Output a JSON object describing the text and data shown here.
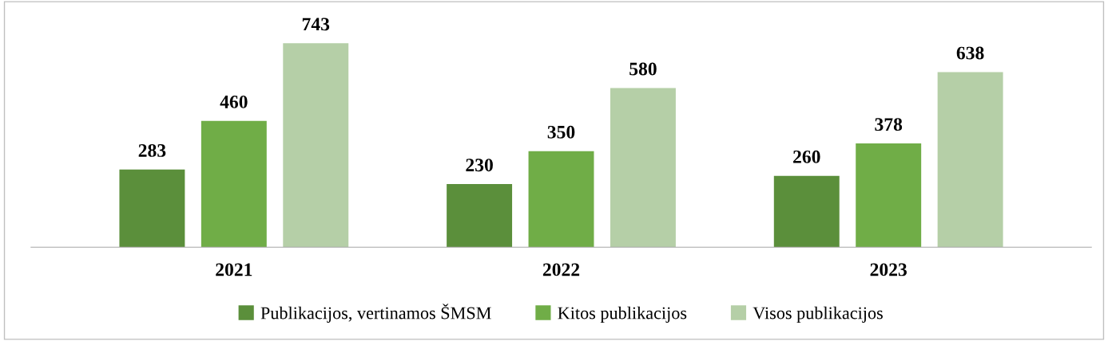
{
  "chart_data": {
    "type": "bar",
    "categories": [
      "2021",
      "2022",
      "2023"
    ],
    "series": [
      {
        "name": "Publikacijos, vertinamos ŠMSM",
        "color": "#5b8f3b",
        "values": [
          283,
          230,
          260
        ]
      },
      {
        "name": "Kitos publikacijos",
        "color": "#70ad47",
        "values": [
          460,
          350,
          378
        ]
      },
      {
        "name": "Visos publikacijos",
        "color": "#b5cfa7",
        "values": [
          743,
          580,
          638
        ]
      }
    ],
    "data_labels": true,
    "legend": "bottom",
    "grid": false
  }
}
